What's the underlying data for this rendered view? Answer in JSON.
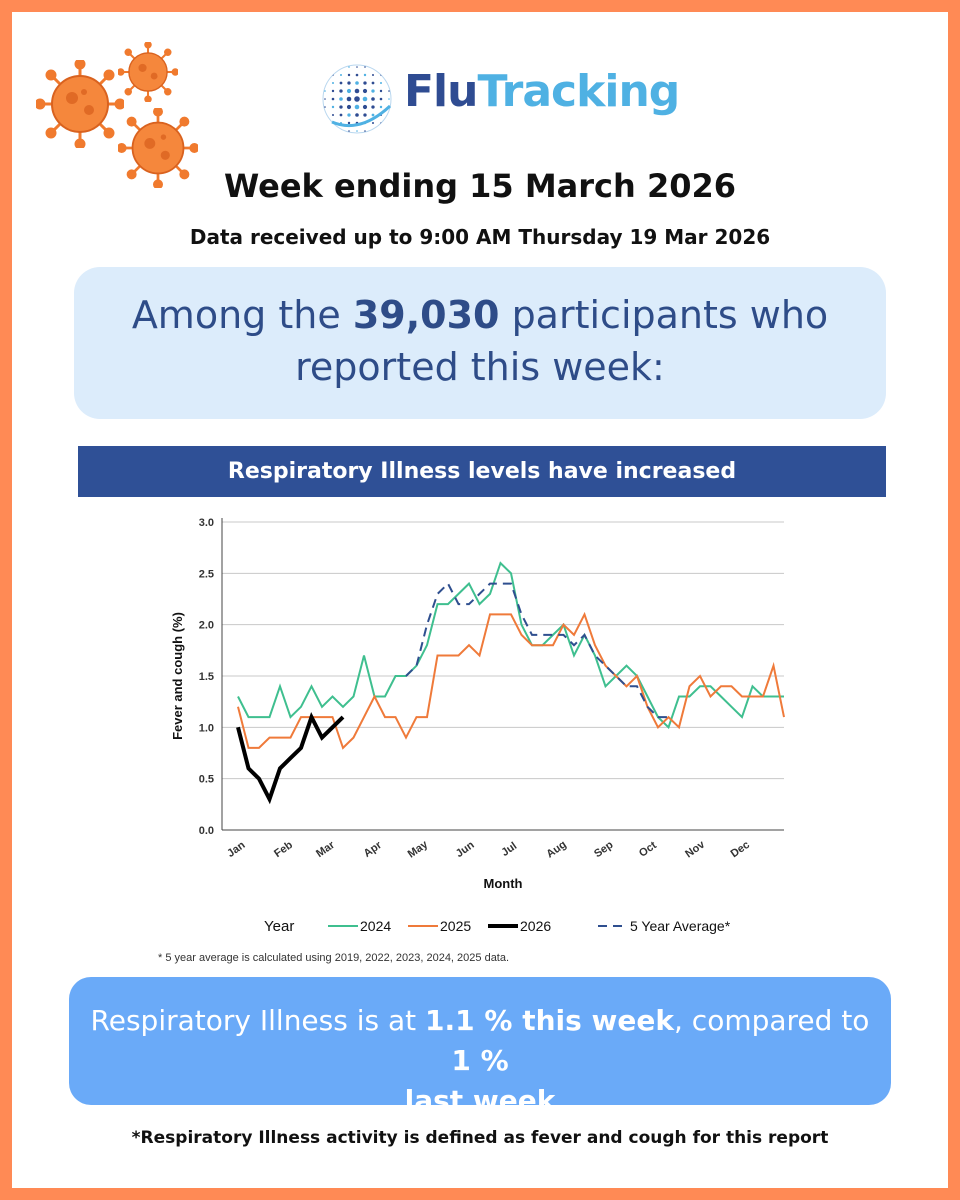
{
  "brand": {
    "name_part1": "Flu",
    "name_part2": "Tracking",
    "colors": {
      "border": "#ff8a55",
      "navy": "#2f5096",
      "light_blue": "#dcecfb",
      "result_blue": "#6aaaf8"
    }
  },
  "header": {
    "week_title": "Week ending 15 March 2026",
    "data_received": "Data received up to 9:00 AM Thursday 19 Mar 2026"
  },
  "participants": {
    "prefix": "Among the",
    "count": "39,030",
    "suffix": "participants who reported this week:"
  },
  "banner": {
    "text": "Respiratory Illness levels have increased"
  },
  "chart_data": {
    "type": "line",
    "title": "",
    "xlabel": "Month",
    "ylabel": "Fever and cough (%)",
    "ylim": [
      0,
      3.0
    ],
    "yticks": [
      "0.0",
      "0.5",
      "1.0",
      "1.5",
      "2.0",
      "2.5",
      "3.0"
    ],
    "xlim": [
      1,
      53
    ],
    "x_ticks": [
      {
        "label": "Jan",
        "week": 1
      },
      {
        "label": "Feb",
        "week": 5.5
      },
      {
        "label": "Mar",
        "week": 9.5
      },
      {
        "label": "Apr",
        "week": 14
      },
      {
        "label": "May",
        "week": 18.3
      },
      {
        "label": "Jun",
        "week": 22.8
      },
      {
        "label": "Jul",
        "week": 27
      },
      {
        "label": "Aug",
        "week": 31.5
      },
      {
        "label": "Sep",
        "week": 36
      },
      {
        "label": "Oct",
        "week": 40.2
      },
      {
        "label": "Nov",
        "week": 44.7
      },
      {
        "label": "Dec",
        "week": 49
      }
    ],
    "grid": true,
    "legend": {
      "title": "Year",
      "placement": "bottom"
    },
    "series": [
      {
        "name": "2024",
        "color": "#3fbf8f",
        "dash": "solid",
        "width": 2,
        "x": [
          1,
          2,
          3,
          4,
          5,
          6,
          7,
          8,
          9,
          10,
          11,
          12,
          13,
          14,
          15,
          16,
          17,
          18,
          19,
          20,
          21,
          22,
          23,
          24,
          25,
          26,
          27,
          28,
          29,
          30,
          31,
          32,
          33,
          34,
          35,
          36,
          37,
          38,
          39,
          40,
          41,
          42,
          43,
          44,
          45,
          46,
          47,
          48,
          49,
          50,
          51,
          52,
          53
        ],
        "values": [
          1.3,
          1.1,
          1.1,
          1.1,
          1.4,
          1.1,
          1.2,
          1.4,
          1.2,
          1.3,
          1.2,
          1.3,
          1.7,
          1.3,
          1.3,
          1.5,
          1.5,
          1.6,
          1.8,
          2.2,
          2.2,
          2.3,
          2.4,
          2.2,
          2.3,
          2.6,
          2.5,
          2.0,
          1.8,
          1.8,
          1.9,
          2.0,
          1.7,
          1.9,
          1.7,
          1.4,
          1.5,
          1.6,
          1.5,
          1.3,
          1.1,
          1.0,
          1.3,
          1.3,
          1.4,
          1.4,
          1.3,
          1.2,
          1.1,
          1.4,
          1.3,
          1.3,
          1.3
        ]
      },
      {
        "name": "2025",
        "color": "#ef7a3a",
        "dash": "solid",
        "width": 2,
        "x": [
          1,
          2,
          3,
          4,
          5,
          6,
          7,
          8,
          9,
          10,
          11,
          12,
          13,
          14,
          15,
          16,
          17,
          18,
          19,
          20,
          21,
          22,
          23,
          24,
          25,
          26,
          27,
          28,
          29,
          30,
          31,
          32,
          33,
          34,
          35,
          36,
          37,
          38,
          39,
          40,
          41,
          42,
          43,
          44,
          45,
          46,
          47,
          48,
          49,
          50,
          51,
          52,
          53
        ],
        "values": [
          1.2,
          0.8,
          0.8,
          0.9,
          0.9,
          0.9,
          1.1,
          1.1,
          1.1,
          1.1,
          0.8,
          0.9,
          1.1,
          1.3,
          1.1,
          1.1,
          0.9,
          1.1,
          1.1,
          1.7,
          1.7,
          1.7,
          1.8,
          1.7,
          2.1,
          2.1,
          2.1,
          1.9,
          1.8,
          1.8,
          1.8,
          2.0,
          1.9,
          2.1,
          1.8,
          1.6,
          1.5,
          1.4,
          1.5,
          1.2,
          1.0,
          1.1,
          1.0,
          1.4,
          1.5,
          1.3,
          1.4,
          1.4,
          1.3,
          1.3,
          1.3,
          1.6,
          1.1
        ]
      },
      {
        "name": "2026",
        "color": "#000000",
        "dash": "solid",
        "width": 4,
        "x": [
          1,
          2,
          3,
          4,
          5,
          6,
          7,
          8,
          9,
          10,
          11
        ],
        "values": [
          1.0,
          0.6,
          0.5,
          0.3,
          0.6,
          0.7,
          0.8,
          1.1,
          0.9,
          1.0,
          1.1
        ]
      },
      {
        "name": "5 Year Average*",
        "color": "#2f4f8f",
        "dash": "dashed",
        "width": 2,
        "x": [
          17,
          18,
          19,
          20,
          21,
          22,
          23,
          24,
          25,
          26,
          27,
          28,
          29,
          30,
          31,
          32,
          33,
          34,
          35,
          36,
          37,
          38,
          39,
          40,
          41,
          42
        ],
        "values": [
          1.5,
          1.6,
          2.0,
          2.3,
          2.4,
          2.2,
          2.2,
          2.3,
          2.4,
          2.4,
          2.4,
          2.1,
          1.9,
          1.9,
          1.9,
          1.9,
          1.8,
          1.9,
          1.7,
          1.6,
          1.5,
          1.4,
          1.4,
          1.2,
          1.1,
          1.1
        ]
      }
    ],
    "footnote": "* 5 year average is calculated using 2019, 2022, 2023, 2024, 2025 data."
  },
  "result": {
    "part1": "Respiratory Illness is at ",
    "this_week": "1.1 % this week",
    "part2": ", compared to ",
    "last_week_value": "1 %",
    "last_week_label": "last week"
  },
  "footer": {
    "definition": "*Respiratory Illness activity is defined as fever and cough for this report"
  }
}
